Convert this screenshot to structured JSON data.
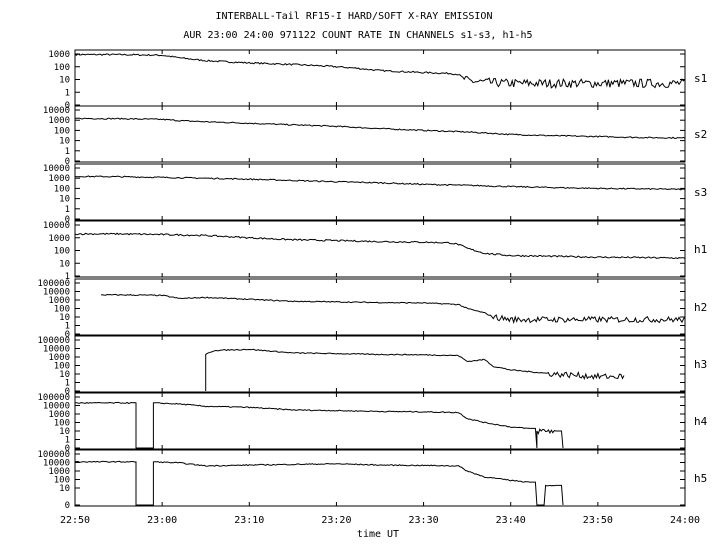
{
  "header": {
    "title_line1": "INTERBALL-Tail RF15-I HARD/SOFT X-RAY EMISSION",
    "title_line2": "AUR 23:00 24:00 971122  COUNT RATE IN CHANNELS s1-s3, h1-h5"
  },
  "chart_data": {
    "type": "line",
    "title": "INTERBALL-Tail RF15-I HARD/SOFT X-RAY EMISSION",
    "subtitle": "AUR 23:00 24:00 971122  COUNT RATE IN CHANNELS s1-s3, h1-h5",
    "xlabel": "time UT",
    "x_range": [
      "22:50",
      "24:00"
    ],
    "x_ticks": [
      "22:50",
      "23:00",
      "23:10",
      "23:20",
      "23:30",
      "23:40",
      "23:50",
      "24:00"
    ],
    "y_scale": "log",
    "grid": false,
    "panels": [
      {
        "name": "s1",
        "y_ticks": [
          "1000",
          "100",
          "10",
          "1",
          "0"
        ],
        "series": {
          "x": [
            "22:50",
            "22:55",
            "23:00",
            "23:02",
            "23:05",
            "23:10",
            "23:15",
            "23:18",
            "23:20",
            "23:22",
            "23:25",
            "23:30",
            "23:33",
            "23:34",
            "23:35",
            "23:37",
            "23:40",
            "23:45",
            "23:50",
            "23:55",
            "24:00"
          ],
          "y": [
            900,
            900,
            800,
            500,
            300,
            200,
            150,
            120,
            100,
            80,
            50,
            35,
            30,
            25,
            8,
            6,
            5,
            5,
            5,
            5,
            5
          ]
        }
      },
      {
        "name": "s2",
        "y_ticks": [
          "10000",
          "1000",
          "100",
          "10",
          "1",
          "0"
        ],
        "series": {
          "x": [
            "22:50",
            "22:55",
            "23:00",
            "23:02",
            "23:05",
            "23:10",
            "23:15",
            "23:20",
            "23:25",
            "23:30",
            "23:35",
            "23:40",
            "23:45",
            "23:50",
            "23:55",
            "24:00"
          ],
          "y": [
            1500,
            1400,
            1200,
            900,
            700,
            500,
            350,
            250,
            150,
            100,
            70,
            40,
            30,
            25,
            20,
            18
          ]
        }
      },
      {
        "name": "s3",
        "y_ticks": [
          "10000",
          "1000",
          "100",
          "10",
          "1",
          "0"
        ],
        "series": {
          "x": [
            "22:50",
            "22:55",
            "23:00",
            "23:05",
            "23:10",
            "23:15",
            "23:20",
            "23:25",
            "23:30",
            "23:35",
            "23:40",
            "23:45",
            "23:50",
            "23:55",
            "24:00"
          ],
          "y": [
            1500,
            1400,
            1200,
            1000,
            800,
            600,
            450,
            350,
            250,
            200,
            150,
            120,
            100,
            90,
            80
          ]
        }
      },
      {
        "name": "h1",
        "y_ticks": [
          "10000",
          "1000",
          "100",
          "10",
          "1"
        ],
        "series": {
          "x": [
            "22:50",
            "22:55",
            "23:00",
            "23:05",
            "23:10",
            "23:15",
            "23:20",
            "23:25",
            "23:30",
            "23:33",
            "23:34",
            "23:35",
            "23:37",
            "23:40",
            "23:45",
            "23:50",
            "23:55",
            "24:00"
          ],
          "y": [
            2000,
            2000,
            1800,
            1500,
            1000,
            700,
            600,
            500,
            450,
            400,
            300,
            150,
            60,
            40,
            35,
            30,
            28,
            25
          ]
        }
      },
      {
        "name": "h2",
        "y_ticks": [
          "100000",
          "10000",
          "1000",
          "100",
          "10",
          "1",
          "0"
        ],
        "series": {
          "x": [
            "22:53",
            "22:55",
            "23:00",
            "23:02",
            "23:05",
            "23:10",
            "23:15",
            "23:20",
            "23:25",
            "23:30",
            "23:34",
            "23:35",
            "23:37",
            "23:38",
            "23:40",
            "23:45",
            "23:50",
            "23:55",
            "24:00"
          ],
          "y": [
            4000,
            4000,
            3500,
            1500,
            2000,
            1200,
            700,
            600,
            500,
            450,
            300,
            100,
            30,
            10,
            5,
            5,
            5,
            5,
            5
          ]
        }
      },
      {
        "name": "h3",
        "y_ticks": [
          "100000",
          "10000",
          "1000",
          "100",
          "10",
          "1",
          "0"
        ],
        "series": {
          "x": [
            "23:05",
            "23:05",
            "23:06",
            "23:10",
            "23:15",
            "23:20",
            "23:25",
            "23:30",
            "23:34",
            "23:35",
            "23:37",
            "23:38",
            "23:40",
            "23:45",
            "23:50",
            "23:53"
          ],
          "y": [
            0,
            2000,
            6000,
            8000,
            3000,
            2500,
            2000,
            1800,
            1500,
            300,
            500,
            80,
            30,
            10,
            5,
            5
          ]
        }
      },
      {
        "name": "h4",
        "y_ticks": [
          "100000",
          "10000",
          "1000",
          "100",
          "10",
          "1",
          "0"
        ],
        "series": {
          "x": [
            "22:50",
            "22:57",
            "22:57",
            "22:59",
            "22:59",
            "23:02",
            "23:05",
            "23:10",
            "23:15",
            "23:20",
            "23:25",
            "23:30",
            "23:34",
            "23:35",
            "23:37",
            "23:40",
            "23:42",
            "23:43",
            "23:43",
            "23:45",
            "23:46"
          ],
          "y": [
            20000,
            20000,
            0,
            0,
            20000,
            15000,
            8000,
            6000,
            3000,
            2500,
            2000,
            1800,
            1500,
            300,
            100,
            30,
            20,
            0,
            10,
            10,
            0
          ]
        }
      },
      {
        "name": "h5",
        "y_ticks": [
          "100000",
          "10000",
          "1000",
          "100",
          "10",
          "0"
        ],
        "series": {
          "x": [
            "22:50",
            "22:57",
            "22:57",
            "22:59",
            "22:59",
            "23:02",
            "23:05",
            "23:10",
            "23:15",
            "23:20",
            "23:25",
            "23:30",
            "23:34",
            "23:35",
            "23:37",
            "23:40",
            "23:42",
            "23:43",
            "23:44",
            "23:45",
            "23:46"
          ],
          "y": [
            12000,
            12000,
            0,
            0,
            12000,
            9000,
            4000,
            5000,
            6000,
            7000,
            5000,
            4500,
            4000,
            1000,
            200,
            80,
            50,
            0,
            20,
            20,
            0
          ]
        }
      }
    ]
  }
}
